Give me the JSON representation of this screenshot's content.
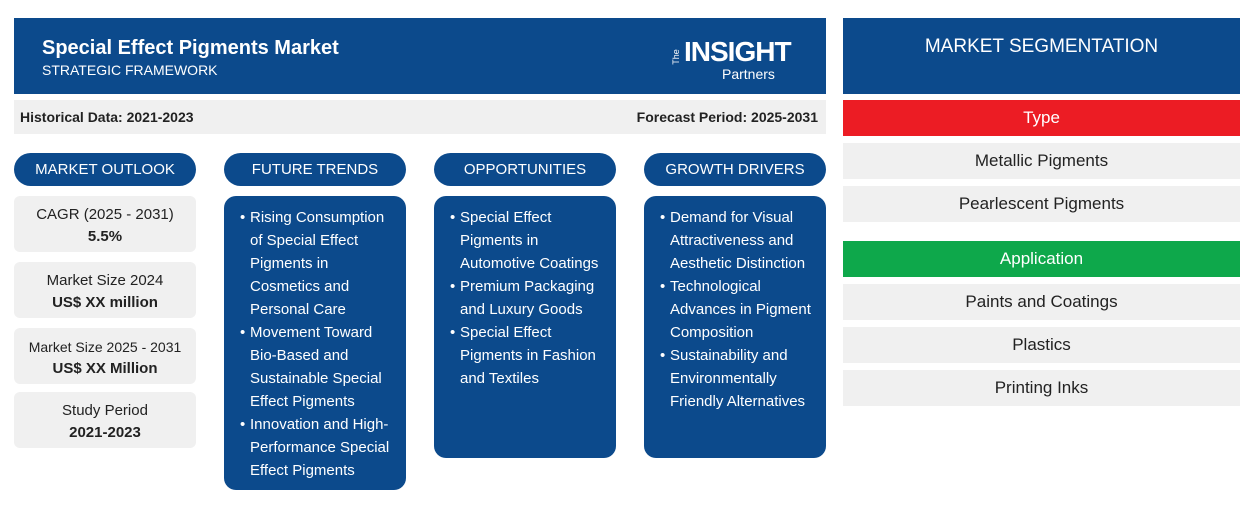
{
  "header": {
    "title": "Special Effect Pigments Market",
    "subtitle": "STRATEGIC FRAMEWORK",
    "logo": {
      "small": "The",
      "main": "INSIGHT",
      "sub": "Partners"
    }
  },
  "period_bar": {
    "historical": "Historical Data: 2021-2023",
    "forecast": "Forecast Period: 2025-2031"
  },
  "market_outlook": {
    "title": "MARKET OUTLOOK",
    "items": [
      {
        "label": "CAGR (2025 - 2031)",
        "value": "5.5%"
      },
      {
        "label": "Market Size 2024",
        "value": "US$ XX million"
      },
      {
        "label": "Market Size 2025 - 2031",
        "value": "US$ XX Million"
      },
      {
        "label": "Study Period",
        "value": "2021-2023"
      }
    ]
  },
  "columns": [
    {
      "title": "FUTURE TRENDS",
      "items": [
        "Rising Consumption of Special Effect Pigments in Cosmetics and Personal Care",
        "Movement Toward Bio-Based and Sustainable Special Effect Pigments",
        "Innovation and High-Performance Special Effect Pigments"
      ]
    },
    {
      "title": "OPPORTUNITIES",
      "items": [
        "Special Effect Pigments in Automotive Coatings",
        "Premium Packaging and Luxury Goods",
        "Special Effect Pigments in Fashion and Textiles"
      ]
    },
    {
      "title": "GROWTH DRIVERS",
      "items": [
        "Demand for Visual Attractiveness and Aesthetic Distinction",
        "Technological Advances in Pigment Composition",
        "Sustainability and Environmentally Friendly Alternatives"
      ]
    }
  ],
  "segmentation": {
    "title": "MARKET SEGMENTATION",
    "groups": [
      {
        "name": "Type",
        "items": [
          "Metallic Pigments",
          "Pearlescent Pigments"
        ]
      },
      {
        "name": "Application",
        "items": [
          "Paints and Coatings",
          "Plastics",
          "Printing Inks"
        ]
      }
    ]
  }
}
